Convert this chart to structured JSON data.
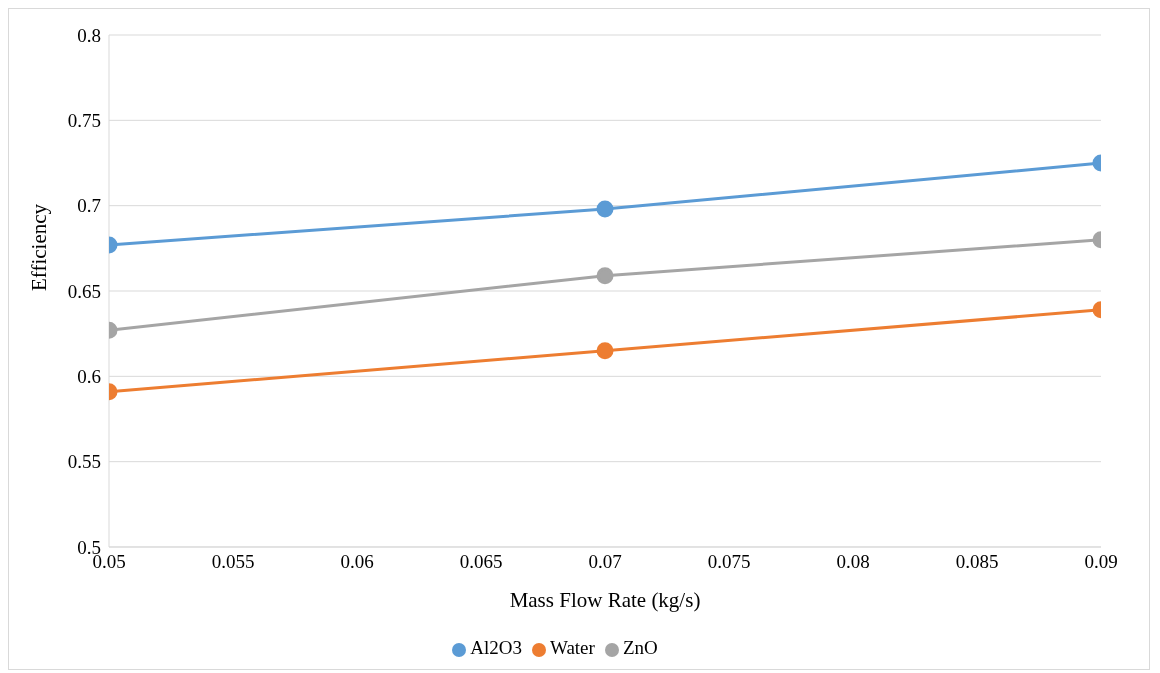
{
  "chart_data": {
    "type": "line",
    "xlabel": "Mass Flow Rate (kg/s)",
    "ylabel": "Efficiency",
    "x": [
      0.05,
      0.07,
      0.09
    ],
    "series": [
      {
        "name": "Al2O3",
        "color": "#5b9bd5",
        "values": [
          0.677,
          0.698,
          0.725
        ]
      },
      {
        "name": "Water",
        "color": "#ed7d31",
        "values": [
          0.591,
          0.615,
          0.639
        ]
      },
      {
        "name": "ZnO",
        "color": "#a5a5a5",
        "values": [
          0.627,
          0.659,
          0.68
        ]
      }
    ],
    "xlim": [
      0.05,
      0.09
    ],
    "xticks": [
      0.05,
      0.055,
      0.06,
      0.065,
      0.07,
      0.075,
      0.08,
      0.085,
      0.09
    ],
    "ylim": [
      0.5,
      0.8
    ],
    "yticks": [
      0.5,
      0.55,
      0.6,
      0.65,
      0.7,
      0.75,
      0.8
    ],
    "grid": "y",
    "legend": "bottom",
    "marker": "circle",
    "line_style": "solid"
  }
}
